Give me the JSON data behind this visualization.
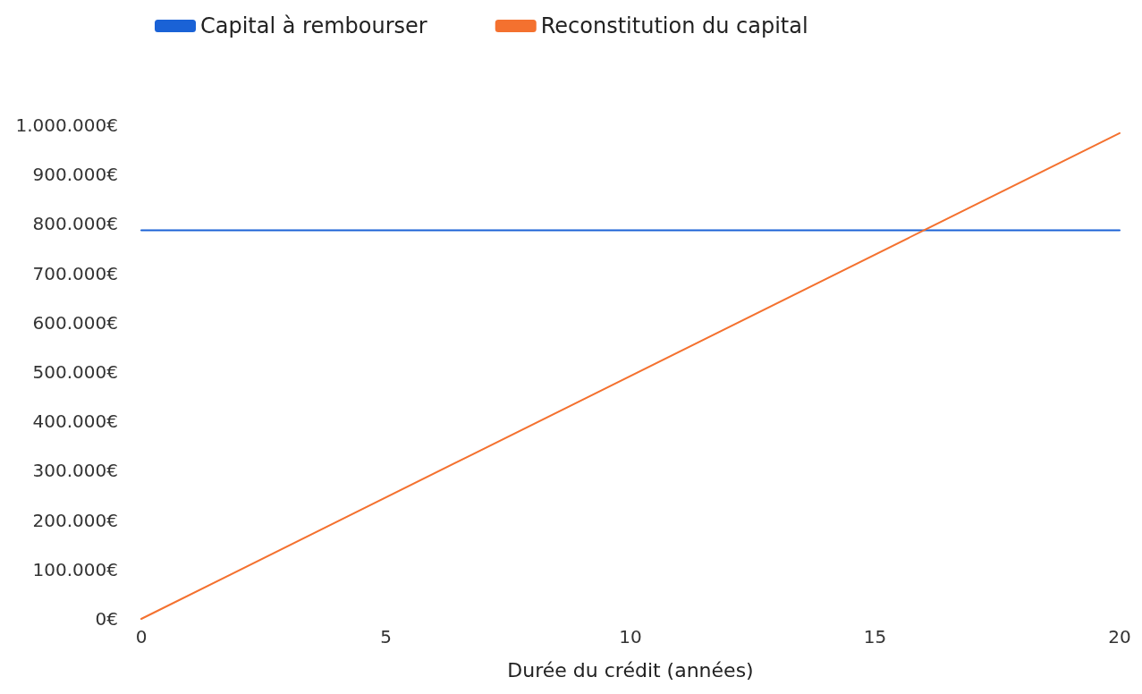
{
  "chart_data": {
    "type": "line",
    "xlabel": "Durée du crédit (années)",
    "series": [
      {
        "name": "Capital à rembourser",
        "color": "#1a62d6",
        "values": [
          787000,
          787000
        ]
      },
      {
        "name": "Reconstitution du capital",
        "color": "#f4712f",
        "values": [
          0,
          984000
        ]
      }
    ],
    "x": [
      0,
      20
    ],
    "xlim": [
      0,
      20
    ],
    "xticks": [
      0,
      5,
      10,
      15,
      20
    ],
    "ylim": [
      0,
      1000000
    ],
    "yticks": [
      {
        "value": 0,
        "label": "0€"
      },
      {
        "value": 100000,
        "label": "100.000€"
      },
      {
        "value": 200000,
        "label": "200.000€"
      },
      {
        "value": 300000,
        "label": "300.000€"
      },
      {
        "value": 400000,
        "label": "400.000€"
      },
      {
        "value": 500000,
        "label": "500.000€"
      },
      {
        "value": 600000,
        "label": "600.000€"
      },
      {
        "value": 700000,
        "label": "700.000€"
      },
      {
        "value": 800000,
        "label": "800.000€"
      },
      {
        "value": 900000,
        "label": "900.000€"
      },
      {
        "value": 1000000,
        "label": "1.000.000€"
      }
    ],
    "grid": false,
    "legend": "top left",
    "marker": "none",
    "line_style": "solid"
  }
}
